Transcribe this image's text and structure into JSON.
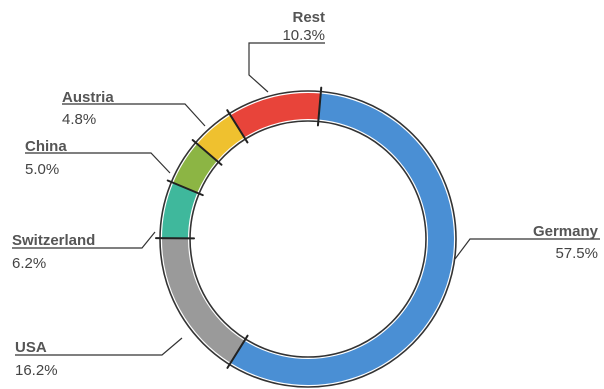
{
  "chart_data": {
    "type": "pie",
    "title": "",
    "donut": true,
    "legend": "none",
    "grid": false,
    "slices": [
      {
        "label": "Germany",
        "value_label": "57.5%",
        "value": 57.5,
        "color": "#4a8fd4"
      },
      {
        "label": "USA",
        "value_label": "16.2%",
        "value": 16.2,
        "color": "#9a9a9a"
      },
      {
        "label": "Switzerland",
        "value_label": "6.2%",
        "value": 6.2,
        "color": "#3fb89c"
      },
      {
        "label": "China",
        "value_label": "5.0%",
        "value": 5.0,
        "color": "#8cb544"
      },
      {
        "label": "Austria",
        "value_label": "4.8%",
        "value": 4.8,
        "color": "#efc12f"
      },
      {
        "label": "Rest",
        "value_label": "10.3%",
        "value": 10.3,
        "color": "#e8443a"
      }
    ]
  }
}
